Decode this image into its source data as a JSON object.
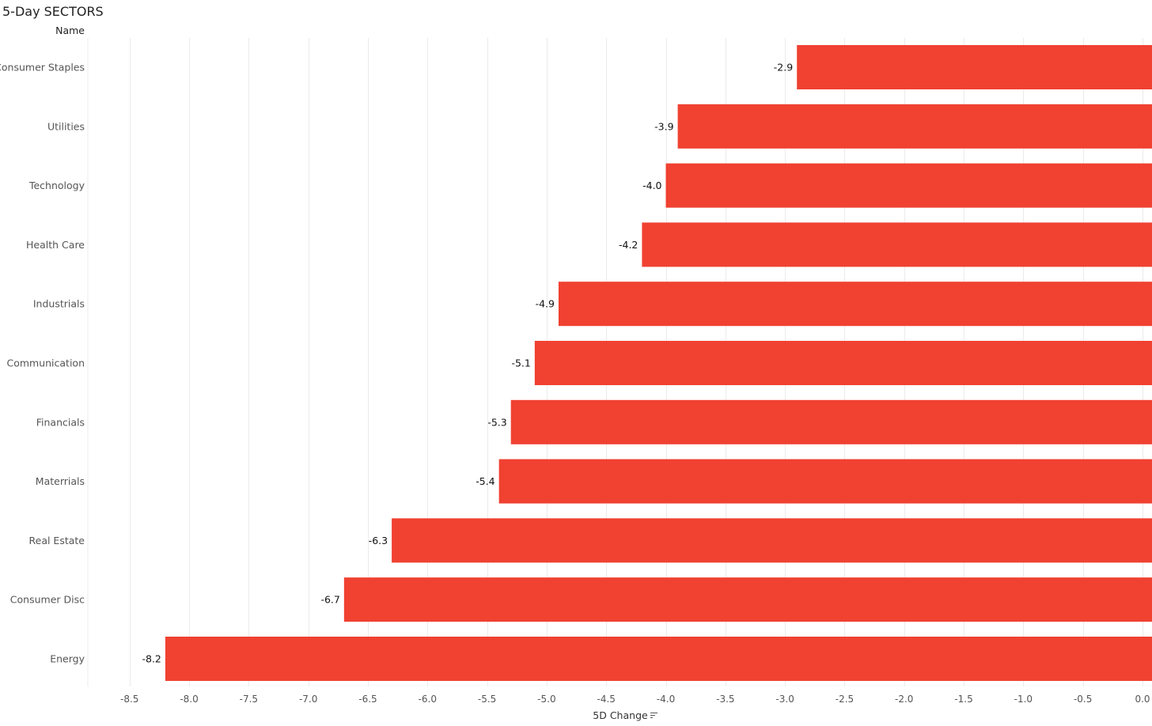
{
  "title": "5-Day SECTORS",
  "y_header": "Name",
  "colors": {
    "bar": "#F04131",
    "grid": "#EBEBEB",
    "axis_text": "#555555",
    "label_text": "#111111"
  },
  "chart_data": {
    "type": "bar",
    "orientation": "horizontal",
    "title": "5-Day SECTORS",
    "xlabel": "5D Change",
    "ylabel": "Name",
    "categories": [
      "Consumer Staples",
      "Utilities",
      "Technology",
      "Health Care",
      "Industrials",
      "Communication",
      "Financials",
      "Materrials",
      "Real Estate",
      "Consumer Disc",
      "Energy"
    ],
    "values": [
      -2.9,
      -3.9,
      -4.0,
      -4.2,
      -4.9,
      -5.1,
      -5.3,
      -5.4,
      -6.3,
      -6.7,
      -8.2
    ],
    "value_labels": [
      "-2.9",
      "-3.9",
      "-4.0",
      "-4.2",
      "-4.9",
      "-5.1",
      "-5.3",
      "-5.4",
      "-6.3",
      "-6.7",
      "-8.2"
    ],
    "xlim": [
      -8.85,
      0
    ],
    "xticks": [
      -8.5,
      -8.0,
      -7.5,
      -7.0,
      -6.5,
      -6.0,
      -5.5,
      -5.0,
      -4.5,
      -4.0,
      -3.5,
      -3.0,
      -2.5,
      -2.0,
      -1.5,
      -1.0,
      -0.5,
      0.0
    ],
    "xtick_labels": [
      "-8.5",
      "-8.0",
      "-7.5",
      "-7.0",
      "-6.5",
      "-6.0",
      "-5.5",
      "-5.0",
      "-4.5",
      "-4.0",
      "-3.5",
      "-3.0",
      "-2.5",
      "-2.0",
      "-1.5",
      "-1.0",
      "-0.5",
      "0.0"
    ],
    "grid": true,
    "legend": "none",
    "sort_indicator": "sort-descending-icon"
  }
}
